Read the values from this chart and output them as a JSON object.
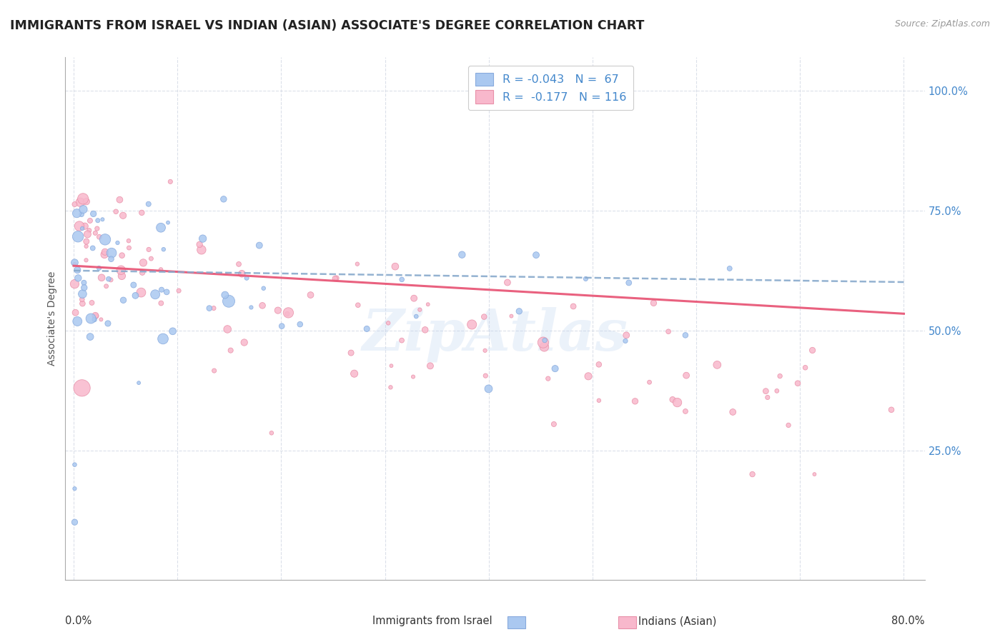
{
  "title": "IMMIGRANTS FROM ISRAEL VS INDIAN (ASIAN) ASSOCIATE'S DEGREE CORRELATION CHART",
  "source": "Source: ZipAtlas.com",
  "ylabel": "Associate's Degree",
  "ytick_labels": [
    "100.0%",
    "75.0%",
    "50.0%",
    "25.0%"
  ],
  "ytick_values": [
    1.0,
    0.75,
    0.5,
    0.25
  ],
  "xlim": [
    0.0,
    0.8
  ],
  "ylim": [
    0.0,
    1.05
  ],
  "watermark": "ZipAtlas",
  "israel_color": "#aac8f0",
  "israel_edge_color": "#88aadd",
  "indian_color": "#f8b8cc",
  "indian_edge_color": "#e890a8",
  "trendline_israel_color": "#88aacc",
  "trendline_indian_color": "#e85878",
  "background_color": "#ffffff",
  "grid_color": "#d8dde8",
  "title_fontsize": 12.5,
  "legend_label_blue": "R = -0.043   N =  67",
  "legend_label_pink": "R =  -0.177   N = 116",
  "bottom_label_blue": "Immigrants from Israel",
  "bottom_label_pink": "Indians (Asian)"
}
